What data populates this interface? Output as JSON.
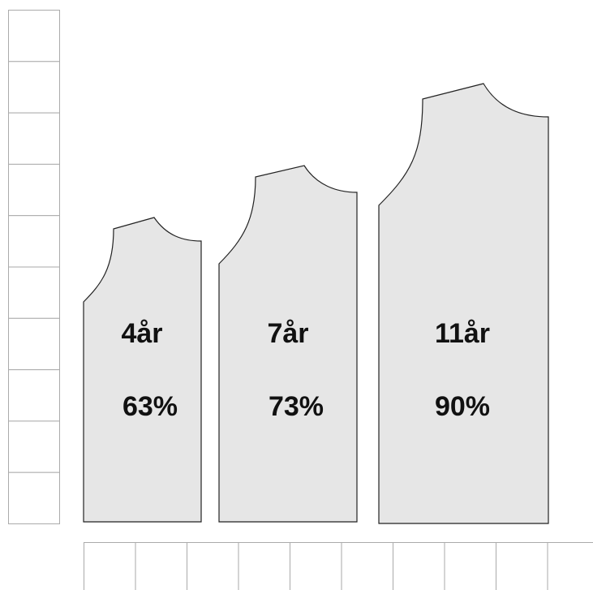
{
  "pieces": [
    {
      "label": "4år",
      "percent": "63%"
    },
    {
      "label": "7år",
      "percent": "73%"
    },
    {
      "label": "11år",
      "percent": "90%"
    }
  ]
}
